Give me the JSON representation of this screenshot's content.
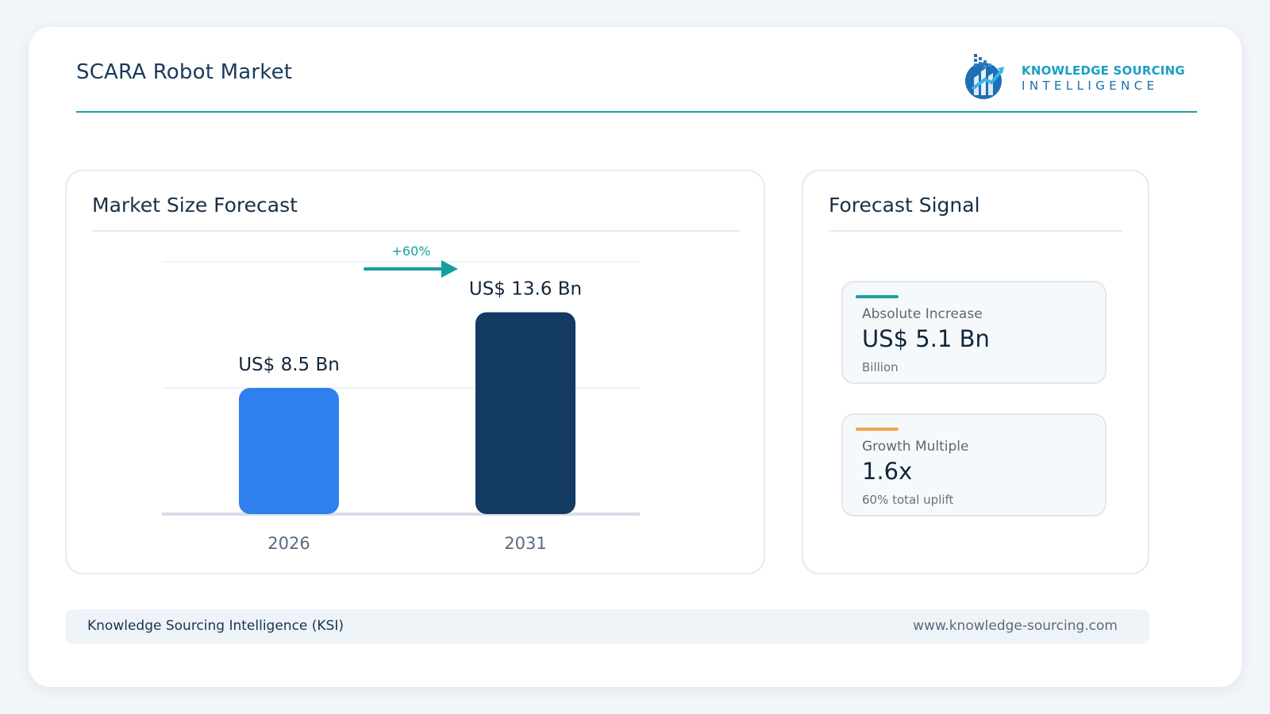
{
  "header": {
    "title": "SCARA Robot Market"
  },
  "logo": {
    "line1": "KNOWLEDGE SOURCING",
    "line2": "INTELLIGENCE"
  },
  "colors": {
    "accent_teal": "#1aa3a0",
    "bar_2026": "#2f80ec",
    "bar_2031": "#123a63",
    "accent_orange": "#f0a44a"
  },
  "left_panel": {
    "title": "Market Size Forecast"
  },
  "right_panel": {
    "title": "Forecast Signal",
    "metrics": [
      {
        "label": "Absolute Increase",
        "value": "US$ 5.1 Bn",
        "sub": "Billion"
      },
      {
        "label": "Growth Multiple",
        "value": "1.6x",
        "sub": "60% total uplift"
      }
    ]
  },
  "chart_data": {
    "type": "bar",
    "categories": [
      "2026",
      "2031"
    ],
    "values": [
      8.5,
      13.6
    ],
    "data_labels": [
      "US$ 8.5 Bn",
      "US$ 13.6 Bn"
    ],
    "ylim": [
      0,
      17
    ],
    "grid": true,
    "annotation": "+60%"
  },
  "footer": {
    "left": "Knowledge Sourcing Intelligence (KSI)",
    "right": "www.knowledge-sourcing.com"
  }
}
